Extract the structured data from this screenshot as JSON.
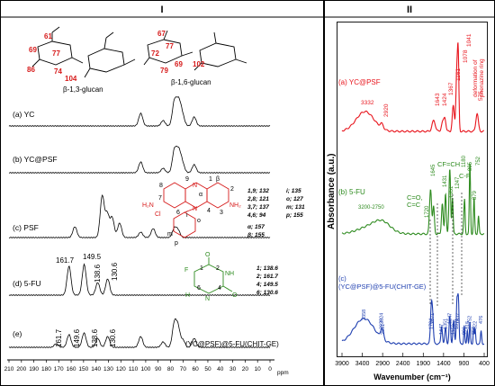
{
  "panel_left": {
    "header": "I",
    "glucan_labels": {
      "b13": "β-1,3-glucan",
      "b16": "β-1,6-glucan"
    },
    "glucan_numbers": {
      "n61": "61",
      "n69": "69",
      "n77": "77",
      "n86": "86",
      "n74": "74",
      "n104": "104",
      "n67": "67",
      "n72": "72",
      "n77b": "77",
      "n79": "79",
      "n69b": "69",
      "n102": "102"
    },
    "trace_labels": [
      "(a) YC",
      "(b) YC@PSF",
      "(c) PSF",
      "(d) 5-FU",
      "(e)"
    ],
    "trace_e_right": "(YC@PSF)@5-FU(CHIT-GE)",
    "psf_struct": {
      "h2n_l": "H₂N",
      "nh2_r": "NH₂",
      "cl": "Cl",
      "n_plus": "N",
      "n_top": "N",
      "num9": "9",
      "num8": "8",
      "num7": "7",
      "num6": "6",
      "num1": "1",
      "num2": "2",
      "num3": "3",
      "num4": "4",
      "alpha": "α",
      "beta": "β",
      "m": "m",
      "o": "o",
      "p": "p",
      "i": "i"
    },
    "psf_shifts": [
      [
        "1,9; 132",
        "i; 135"
      ],
      [
        "2,8; 121",
        "o; 127"
      ],
      [
        "3,7; 137",
        "m; 131"
      ],
      [
        "4,6; 94",
        "p; 155"
      ],
      [
        "α; 157",
        ""
      ],
      [
        "β; 155",
        ""
      ]
    ],
    "fu_struct": {
      "F": "F",
      "O_top": "O",
      "O_bot": "O",
      "NH_r": "NH",
      "NH_b": "N",
      "H": "H",
      "n1": "1",
      "n2": "2",
      "n3": "3",
      "n4": "4",
      "n5": "5",
      "n6": "6"
    },
    "fu_shifts": [
      "1; 138.6",
      "2; 161.7",
      "4; 149.5",
      "6; 130.6"
    ],
    "peak_labels_d": [
      "161.7",
      "149.5",
      "138.6",
      "130.6"
    ],
    "peak_labels_e": [
      "161.7",
      "149.6",
      "138.6",
      "130.6"
    ],
    "x_ticks": [
      "210",
      "200",
      "190",
      "180",
      "170",
      "160",
      "150",
      "140",
      "130",
      "120",
      "110",
      "100",
      "90",
      "80",
      "70",
      "60",
      "50",
      "40",
      "30",
      "20",
      "10",
      "0"
    ],
    "x_unit": "ppm"
  },
  "panel_right": {
    "header": "II",
    "ylabel": "Absorbance (a.u.)",
    "xlabel": "Wavenumber (cm⁻¹)",
    "x_ticks": [
      "3900",
      "3400",
      "2900",
      "2400",
      "1900",
      "1400",
      "900",
      "400"
    ],
    "trace_a": {
      "label": "(a) YC@PSF",
      "color": "#e8141c",
      "peaks": [
        "3332",
        "2920",
        "1643",
        "1424",
        "1367",
        "1161",
        "1078",
        "1041",
        "575"
      ],
      "note_1": "deformation of",
      "note_2": "phenazine ring"
    },
    "trace_b": {
      "label": "(b) 5-FU",
      "color": "#2e8b1f",
      "peaks": [
        "3200-2750",
        "1720",
        "1645",
        "1431",
        "1351",
        "1247",
        "1180",
        "895",
        "752",
        "879"
      ],
      "bond_labels": [
        "C=O,",
        "C=C",
        "CF=CH",
        "C-F"
      ]
    },
    "trace_c": {
      "label_1": "(c)",
      "label_2": "(YC@PSF)@5-FU(CHIT-GE)",
      "color": "#1f3fb0",
      "peaks": [
        "3358",
        "2930",
        "2924",
        "2891",
        "1704",
        "1671",
        "1447",
        "1351",
        "1247",
        "1153",
        "1071",
        "1037",
        "891",
        "815",
        "752",
        "659",
        "622",
        "476"
      ]
    }
  }
}
